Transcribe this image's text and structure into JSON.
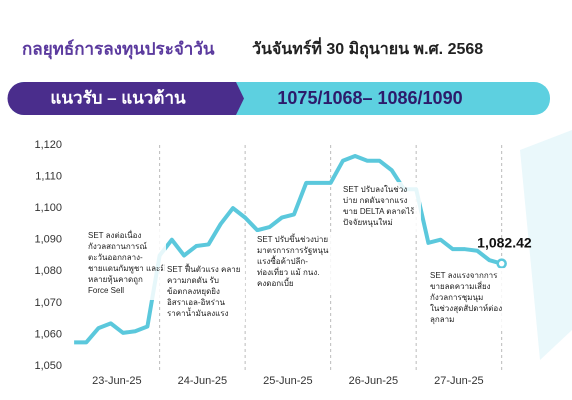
{
  "chart_data": {
    "type": "line",
    "title": "กลยุทธ์การลงทุนประจำวัน",
    "subtitle": "วันจันทร์ที่ 30 มิถุนายน พ.ศ. 2568",
    "banner_label": "แนวรับ – แนวต้าน",
    "banner_value": "1075/1068– 1086/1090",
    "x": [
      0,
      1,
      2,
      3,
      4,
      5,
      6,
      7,
      8,
      9,
      10,
      11,
      12,
      13,
      14,
      15,
      16,
      17,
      18,
      19,
      20,
      21,
      22,
      23,
      24,
      25,
      26,
      27,
      28,
      29,
      30,
      31,
      32,
      33,
      34,
      35
    ],
    "xlim": [
      -0.5,
      36.5
    ],
    "xticks": [
      {
        "value": 3.5,
        "label": "23-Jun-25"
      },
      {
        "value": 10.5,
        "label": "24-Jun-25"
      },
      {
        "value": 17.5,
        "label": "25-Jun-25"
      },
      {
        "value": 24.5,
        "label": "26-Jun-25"
      },
      {
        "value": 31.5,
        "label": "27-Jun-25"
      }
    ],
    "series": [
      {
        "name": "SET",
        "color": "#5bc8dc",
        "values": [
          1057.5,
          1057.5,
          1062,
          1063.5,
          1060.5,
          1061,
          1062.5,
          1085,
          1090,
          1085,
          1088,
          1088.5,
          1095,
          1100,
          1097,
          1093,
          1094,
          1097,
          1098,
          1108,
          1108,
          1108,
          1115,
          1116.5,
          1115,
          1115,
          1112,
          1106,
          1106,
          1089,
          1090,
          1087,
          1087,
          1086.5,
          1083.5,
          1082.42
        ],
        "value_labels": [
          null,
          null,
          null,
          null,
          null,
          null,
          null,
          null,
          null,
          null,
          null,
          null,
          null,
          null,
          null,
          null,
          null,
          null,
          null,
          null,
          null,
          null,
          null,
          null,
          null,
          null,
          null,
          null,
          null,
          null,
          null,
          null,
          null,
          null,
          null,
          "1,082.42"
        ]
      }
    ],
    "ylim": [
      1050,
      1120
    ],
    "yticks": [
      {
        "value": 1050,
        "label": "1,050"
      },
      {
        "value": 1060,
        "label": "1,060"
      },
      {
        "value": 1070,
        "label": "1,070"
      },
      {
        "value": 1080,
        "label": "1,080"
      },
      {
        "value": 1090,
        "label": "1,090"
      },
      {
        "value": 1100,
        "label": "1,100"
      },
      {
        "value": 1110,
        "label": "1,110"
      },
      {
        "value": 1120,
        "label": "1,120"
      }
    ],
    "annotations": [
      [
        "SET ลงต่อเนื่อง",
        "กังวลสถานการณ์",
        "ตะวันออกกลาง-",
        "ชายแดนกัมพูชา และมี",
        "หลายหุ้นคาดถูก",
        "Force Sell"
      ],
      [
        "SET ฟื้นตัวแรง คลาย",
        "ความกดดัน รับ",
        "ข้อตกลงหยุดยิง",
        "อิสราเอล-อิหร่าน",
        "ราคาน้ำมันลงแรง"
      ],
      [
        "SET ปรับขึ้นช่วงบ่าย",
        "มาตรการการรัฐหนุน",
        "แรงซื้อค้าปลีก-",
        "ท่องเที่ยว แม้ กนง.",
        "คงดอกเบี้ย"
      ],
      [
        "SET ปรับลงในช่วง",
        "บ่าย กดดันจากแรง",
        "ขาย DELTA ตลาดไร้",
        "ปัจจัยหนุนใหม่"
      ],
      [
        "SET ลงแรงจากการ",
        "ขายลดความเสี่ยง",
        "กังวลการชุมนุม",
        "ในช่วงสุดสัปดาห์ต่อง",
        "ลุกลาม"
      ]
    ]
  }
}
